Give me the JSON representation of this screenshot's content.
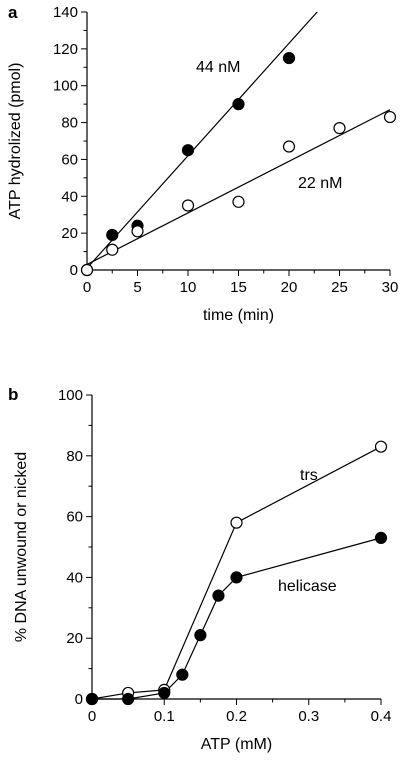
{
  "chart_data": [
    {
      "panel": "a",
      "type": "scatter",
      "xlabel": "time (min)",
      "ylabel": "ATP hydrolized (pmol)",
      "xlim": [
        0,
        30
      ],
      "ylim": [
        0,
        140
      ],
      "xticks": [
        0,
        5,
        10,
        15,
        20,
        25,
        30
      ],
      "yticks": [
        0,
        20,
        40,
        60,
        80,
        100,
        120,
        140
      ],
      "grid": false,
      "series": [
        {
          "name": "44 nM",
          "marker": "filled-circle",
          "x": [
            0,
            2.5,
            5,
            10,
            15,
            20
          ],
          "y": [
            0,
            19,
            24,
            65,
            90,
            115
          ],
          "fit": {
            "type": "linear",
            "slope": 6.1,
            "intercept": 1
          }
        },
        {
          "name": "22 nM",
          "marker": "open-circle",
          "x": [
            0,
            2.5,
            5,
            10,
            15,
            20,
            25,
            30
          ],
          "y": [
            0,
            11,
            21,
            35,
            37,
            67,
            77,
            83
          ],
          "fit": {
            "type": "linear",
            "slope": 2.8,
            "intercept": 3
          }
        }
      ]
    },
    {
      "panel": "b",
      "type": "line",
      "xlabel": "ATP (mM)",
      "ylabel": "% DNA unwound or nicked",
      "xlim": [
        0,
        0.4
      ],
      "ylim": [
        0,
        100
      ],
      "xticks": [
        0,
        0.1,
        0.2,
        0.3,
        0.4
      ],
      "yticks": [
        0,
        20,
        40,
        60,
        80,
        100
      ],
      "grid": false,
      "series": [
        {
          "name": "trs",
          "marker": "open-circle",
          "x": [
            0,
            0.05,
            0.1,
            0.2,
            0.4
          ],
          "y": [
            0,
            2,
            3,
            58,
            83
          ]
        },
        {
          "name": "helicase",
          "marker": "filled-circle",
          "x": [
            0,
            0.05,
            0.1,
            0.125,
            0.15,
            0.175,
            0.2,
            0.4
          ],
          "y": [
            0,
            0,
            2,
            8,
            21,
            34,
            40,
            53
          ]
        }
      ]
    }
  ]
}
